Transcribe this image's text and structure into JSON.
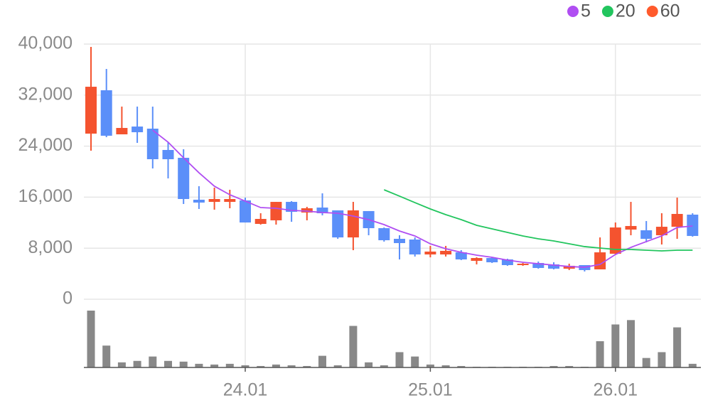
{
  "chart_data": {
    "type": "candlestick",
    "categories": [
      null,
      null,
      null,
      null,
      null,
      null,
      null,
      null,
      null,
      null,
      "24.01",
      null,
      null,
      null,
      null,
      null,
      null,
      null,
      null,
      null,
      null,
      null,
      "25.01",
      null,
      null,
      null,
      null,
      null,
      null,
      null,
      null,
      null,
      null,
      null,
      "26.01",
      null,
      null,
      null,
      null,
      null
    ],
    "open": [
      25960,
      32760,
      25850,
      27070,
      26740,
      23400,
      22170,
      15600,
      15260,
      15260,
      15490,
      11810,
      12370,
      15260,
      13590,
      14370,
      13930,
      9690,
      13820,
      11140,
      9470,
      9360,
      7020,
      7020,
      7350,
      6020,
      6460,
      6240,
      5350,
      5680,
      5460,
      4790,
      5350,
      4680,
      7130,
      10920,
      10810,
      10030,
      11360,
      13260
    ],
    "high": [
      39550,
      36100,
      30200,
      30200,
      30200,
      24620,
      23510,
      17720,
      17490,
      17160,
      15930,
      13480,
      15260,
      15380,
      14480,
      16600,
      13930,
      15260,
      13820,
      11250,
      10030,
      9690,
      8360,
      8360,
      7690,
      6570,
      6570,
      6350,
      5680,
      5910,
      5790,
      5570,
      5350,
      9690,
      12030,
      15260,
      12260,
      13480,
      15930,
      13480
    ],
    "low": [
      23290,
      25400,
      25850,
      24510,
      20500,
      18940,
      14930,
      14150,
      14040,
      14260,
      12030,
      11700,
      11700,
      12140,
      12370,
      13150,
      9470,
      7690,
      10030,
      9030,
      6240,
      6690,
      6570,
      6690,
      6130,
      5460,
      5680,
      5240,
      5240,
      4790,
      4680,
      4570,
      4350,
      4680,
      7020,
      10030,
      8910,
      8580,
      9470,
      9810
    ],
    "close": [
      33310,
      25630,
      26850,
      26180,
      21950,
      21950,
      15710,
      15150,
      15710,
      15710,
      12030,
      12590,
      15260,
      13700,
      14260,
      13480,
      9690,
      13930,
      11140,
      9250,
      8800,
      7020,
      7470,
      7580,
      6240,
      6460,
      5790,
      5350,
      5570,
      4900,
      4790,
      5240,
      4570,
      7350,
      11250,
      11480,
      9470,
      11360,
      13370,
      9920
    ],
    "up_color": "#f4532f",
    "down_color": "#5b8ff9",
    "volume": {
      "color": "#888888",
      "values": [
        78,
        30,
        7,
        9,
        15,
        9,
        8,
        5,
        4,
        5,
        3,
        2,
        4,
        3,
        2,
        16,
        3,
        57,
        7,
        3,
        21,
        15,
        4,
        3,
        2,
        1,
        1,
        1,
        1,
        1,
        2,
        2,
        1,
        36,
        59,
        65,
        13,
        21,
        55,
        5
      ]
    },
    "series": [
      {
        "name": "5",
        "color": "#b04ef2",
        "values": [
          null,
          null,
          null,
          null,
          26500,
          24620,
          22170,
          19830,
          17720,
          16380,
          15380,
          14370,
          14260,
          13930,
          13820,
          13590,
          13480,
          13040,
          12480,
          11700,
          10700,
          9920,
          8690,
          7910,
          7350,
          6910,
          6570,
          6130,
          5790,
          5570,
          5350,
          5130,
          5010,
          5460,
          7020,
          8130,
          9030,
          9920,
          11250,
          11480
        ]
      },
      {
        "name": "20",
        "color": "#22c55e",
        "values": [
          null,
          null,
          null,
          null,
          null,
          null,
          null,
          null,
          null,
          null,
          null,
          null,
          null,
          null,
          null,
          null,
          null,
          null,
          null,
          17160,
          16160,
          15150,
          14150,
          13260,
          12480,
          11590,
          11030,
          10470,
          9920,
          9470,
          9140,
          8690,
          8250,
          8020,
          7800,
          7800,
          7690,
          7580,
          7690,
          7690
        ]
      },
      {
        "name": "60",
        "color": "#ff5a2c",
        "values": [
          null,
          null,
          null,
          null,
          null,
          null,
          null,
          null,
          null,
          null,
          null,
          null,
          null,
          null,
          null,
          null,
          null,
          null,
          null,
          null,
          null,
          null,
          null,
          null,
          null,
          null,
          null,
          null,
          null,
          null,
          null,
          null,
          null,
          null,
          null,
          null,
          null,
          null,
          null,
          null
        ]
      }
    ],
    "ylim": [
      0,
      40000
    ],
    "yticks": [
      0,
      {
        "value": 8000,
        "label": "8,000"
      },
      {
        "value": 16000,
        "label": "16,000"
      },
      {
        "value": 24000,
        "label": "24,000"
      },
      {
        "value": 32000,
        "label": "32,000"
      },
      {
        "value": 40000,
        "label": "40,000"
      }
    ],
    "grid": true
  }
}
